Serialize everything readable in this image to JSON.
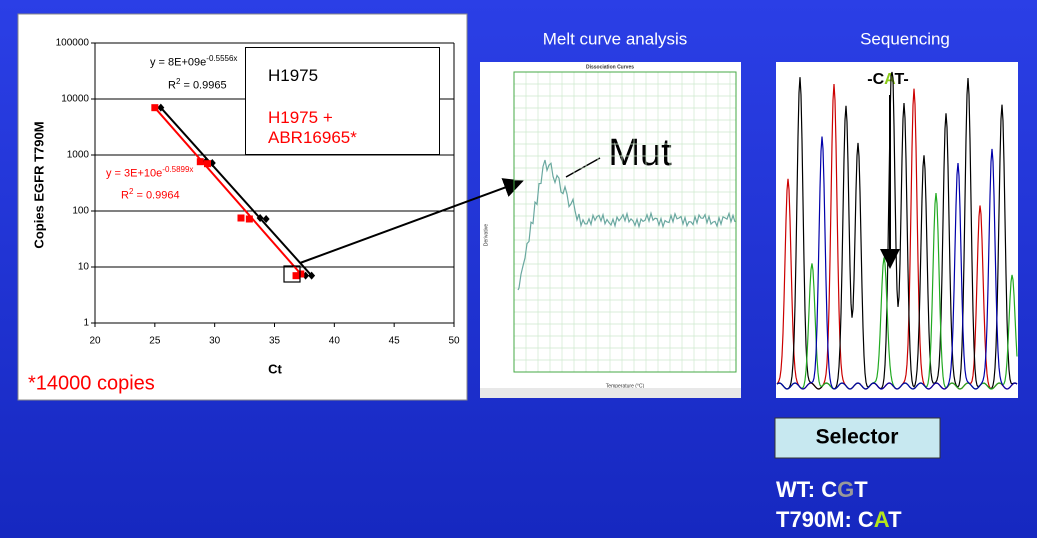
{
  "chart_data": {
    "type": "scatter",
    "y_label": "Copies EGFR T790M",
    "x_label": "Ct",
    "xlim": [
      20,
      50
    ],
    "xticks": [
      20,
      25,
      30,
      35,
      40,
      45,
      50
    ],
    "ylim": [
      1,
      100000
    ],
    "yticks": [
      1,
      10,
      100,
      1000,
      10000,
      100000
    ],
    "log_y": true,
    "grid": true,
    "series": [
      {
        "name": "H1975",
        "color": "#000000",
        "marker": "diamond",
        "x": [
          25.5,
          29.3,
          29.8,
          33.8,
          34.3,
          37.6,
          38.1
        ],
        "values": [
          7000,
          780,
          720,
          75,
          72,
          7,
          7
        ],
        "equation": {
          "text": "y = 8E+09e",
          "exponent": "-0.5556x"
        },
        "r_squared": {
          "text": "R",
          "sup": "2",
          "value": " = 0.9965"
        }
      },
      {
        "name": "H1975 + ABR16965*",
        "color": "#ff0000",
        "marker": "square",
        "x": [
          25,
          28.8,
          29.4,
          32.2,
          32.9,
          36.8,
          37.2
        ],
        "values": [
          7000,
          760,
          700,
          75,
          72,
          7,
          7.5
        ],
        "equation": {
          "text": "y = 3E+10e",
          "exponent": "-0.5899x"
        },
        "r_squared": {
          "text": "R",
          "sup": "2",
          "value": " = 0.9964"
        }
      }
    ],
    "footnote": "*14000 copies"
  },
  "panels": {
    "melt": {
      "title": "Melt curve analysis",
      "plot_title": "Dissociation Curves",
      "x_label": "Temperature (°C)",
      "y_label": "Derivative",
      "annotation": "Mut"
    },
    "sequencing": {
      "title": "Sequencing",
      "codon": [
        "-C",
        "A",
        "T-"
      ]
    }
  },
  "selector": {
    "label": "Selector",
    "wt": [
      "WT: C",
      "G",
      "T"
    ],
    "mutant": [
      "T790M: C",
      "A",
      "T"
    ]
  }
}
